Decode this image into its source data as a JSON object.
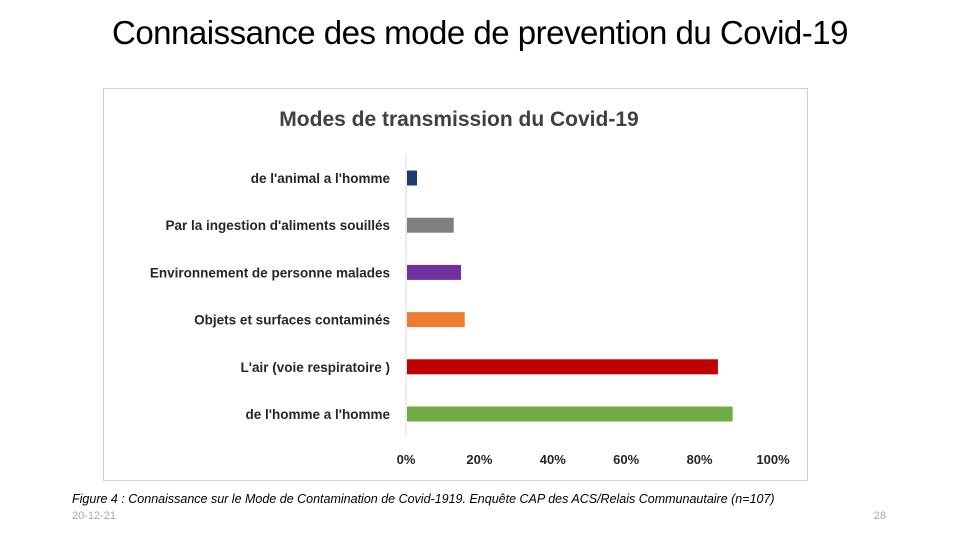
{
  "slide": {
    "title": "Connaissance des mode de prevention du Covid-19",
    "caption": "Figure 4 : Connaissance sur le Mode de Contamination de Covid-1919. Enquête CAP des ACS/Relais Communautaire (n=107)",
    "date": "20-12-21",
    "page_number": "28"
  },
  "chart_data": {
    "type": "bar",
    "orientation": "horizontal",
    "title": "Modes de transmission du Covid-19",
    "xlabel": "",
    "ylabel": "",
    "xlim": [
      0,
      100
    ],
    "x_ticks": [
      "0%",
      "20%",
      "40%",
      "60%",
      "80%",
      "100%"
    ],
    "grid": false,
    "legend": "none",
    "categories": [
      "de l'animal a l'homme",
      "Par la ingestion d'aliments souillés",
      "Environnement de personne malades",
      "Objets et surfaces contaminés",
      "L'air (voie respiratoire )",
      "de l'homme a l'homme"
    ],
    "values": [
      3,
      13,
      15,
      16,
      85,
      89
    ],
    "colors": [
      "#1f3a6e",
      "#7f7f7f",
      "#7030a0",
      "#ed7d31",
      "#c00000",
      "#70ad47"
    ]
  }
}
